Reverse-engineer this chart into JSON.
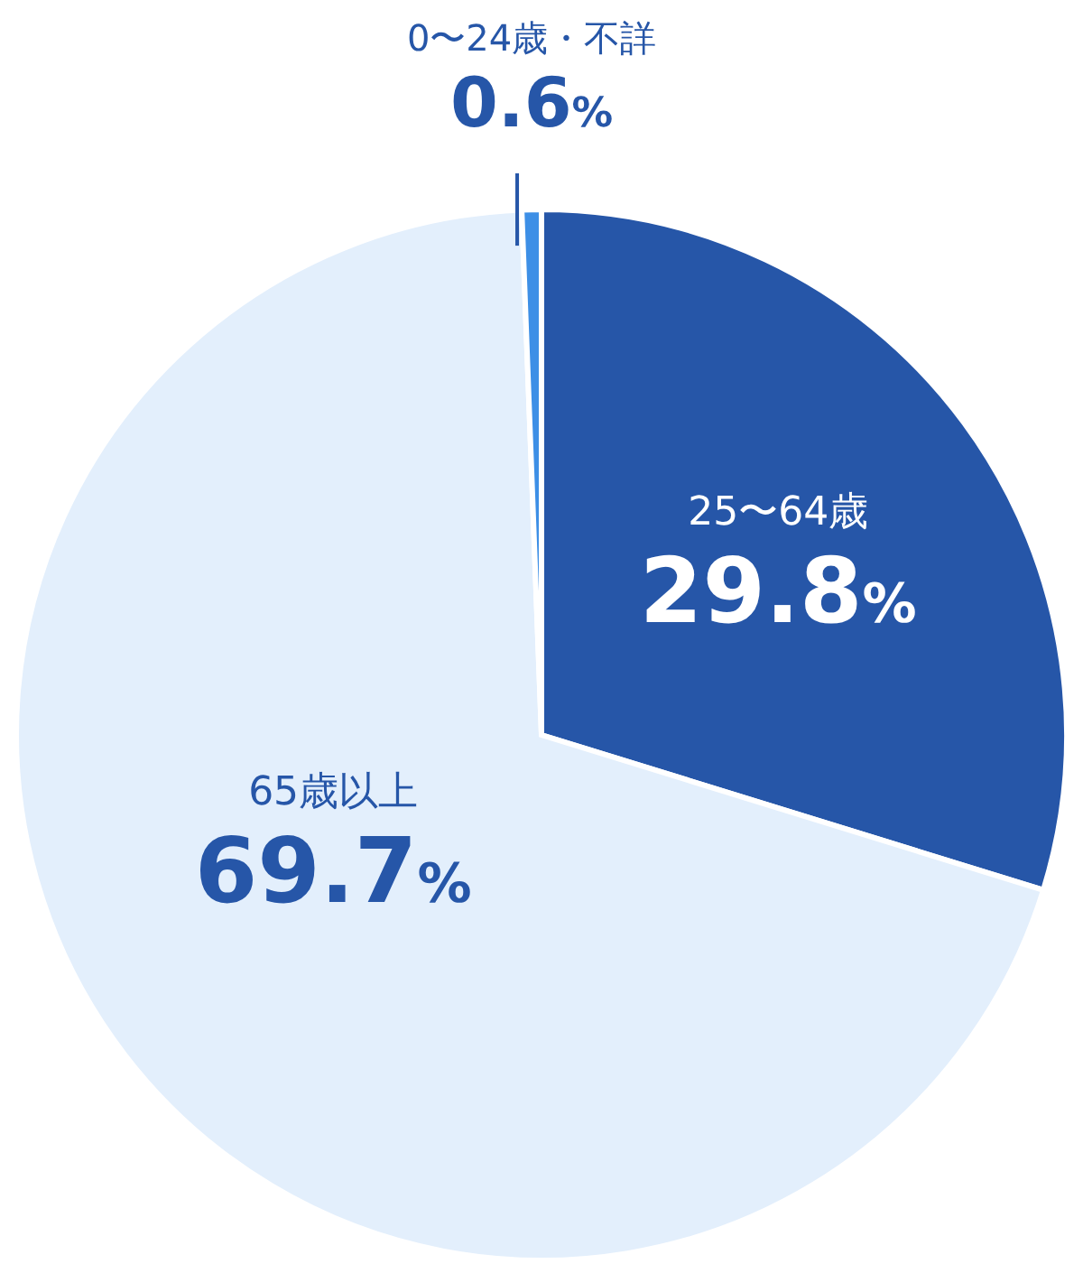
{
  "chart_data": {
    "type": "pie",
    "categories": [
      "25〜64歳",
      "65歳以上",
      "0〜24歳・不詳"
    ],
    "values": [
      29.8,
      69.7,
      0.6
    ],
    "colors": [
      "#2656a8",
      "#e3effc",
      "#3d8fe6"
    ],
    "value_labels": [
      "29.8%",
      "69.7%",
      "0.6%"
    ]
  }
}
